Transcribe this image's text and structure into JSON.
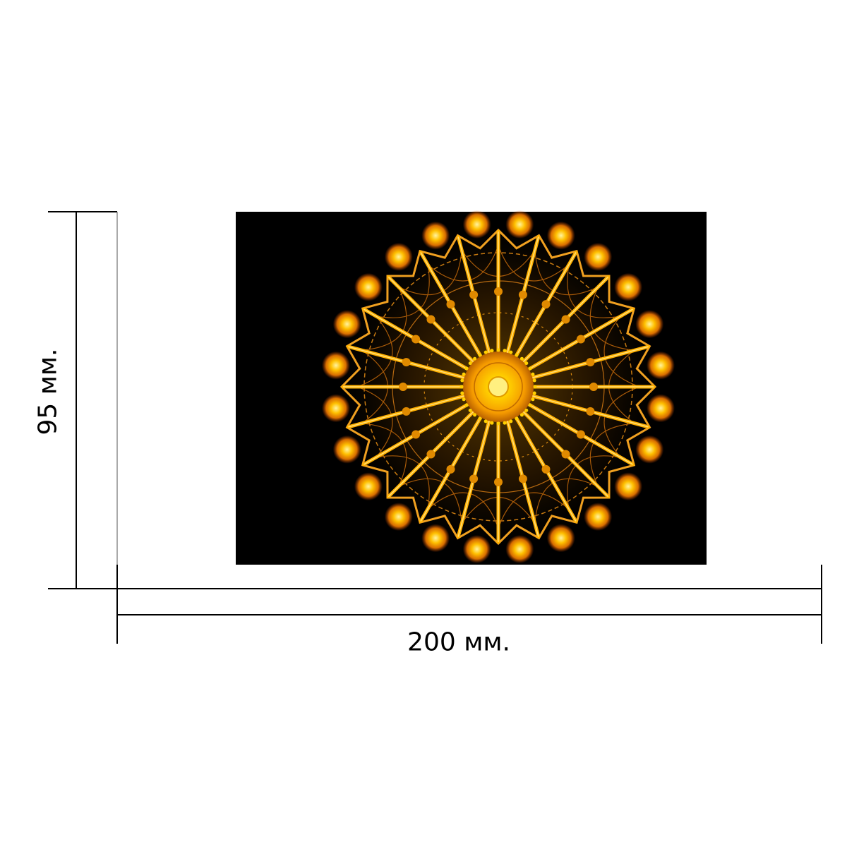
{
  "dimensions": {
    "height_label": "95 мм.",
    "width_label": "200 мм."
  },
  "artwork": {
    "background": "#000000",
    "glow_color": "#ffb000",
    "gold_color": "#f0a020",
    "center_color": "#ffd000",
    "rays": 24,
    "outer_beads": 24
  }
}
